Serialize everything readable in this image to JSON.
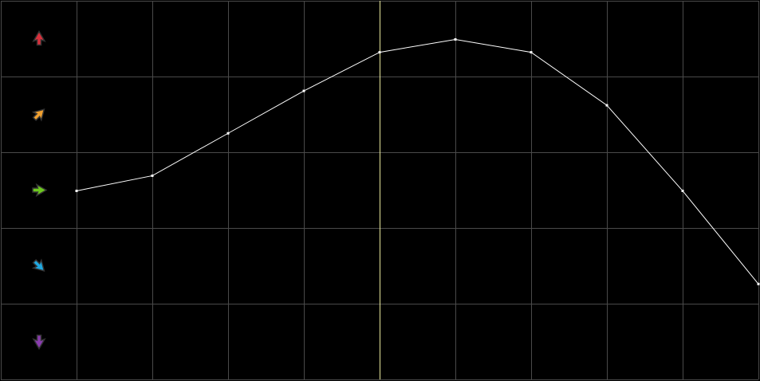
{
  "chart_data": {
    "type": "line",
    "title": "",
    "xlabel": "",
    "ylabel": "",
    "x": [
      1,
      2,
      3,
      4,
      5,
      6,
      7,
      8,
      9,
      10
    ],
    "values": [
      2.49,
      2.69,
      3.25,
      3.81,
      4.32,
      4.49,
      4.32,
      3.62,
      2.49,
      1.26
    ],
    "ylim": [
      0,
      5
    ],
    "xlim": [
      0,
      10
    ],
    "grid": true,
    "highlighted_index": 5,
    "row_icons": [
      {
        "name": "arrow-up-icon",
        "color": "#d9303c"
      },
      {
        "name": "arrow-up-right-icon",
        "color": "#f0a030"
      },
      {
        "name": "arrow-right-icon",
        "color": "#6cc81e"
      },
      {
        "name": "arrow-down-right-icon",
        "color": "#20a8e0"
      },
      {
        "name": "arrow-down-icon",
        "color": "#8a3cb0"
      }
    ],
    "colors": {
      "background": "#000000",
      "grid": "#4a4a4a",
      "line": "#ffffff",
      "highlight": "#e8e89a"
    }
  }
}
